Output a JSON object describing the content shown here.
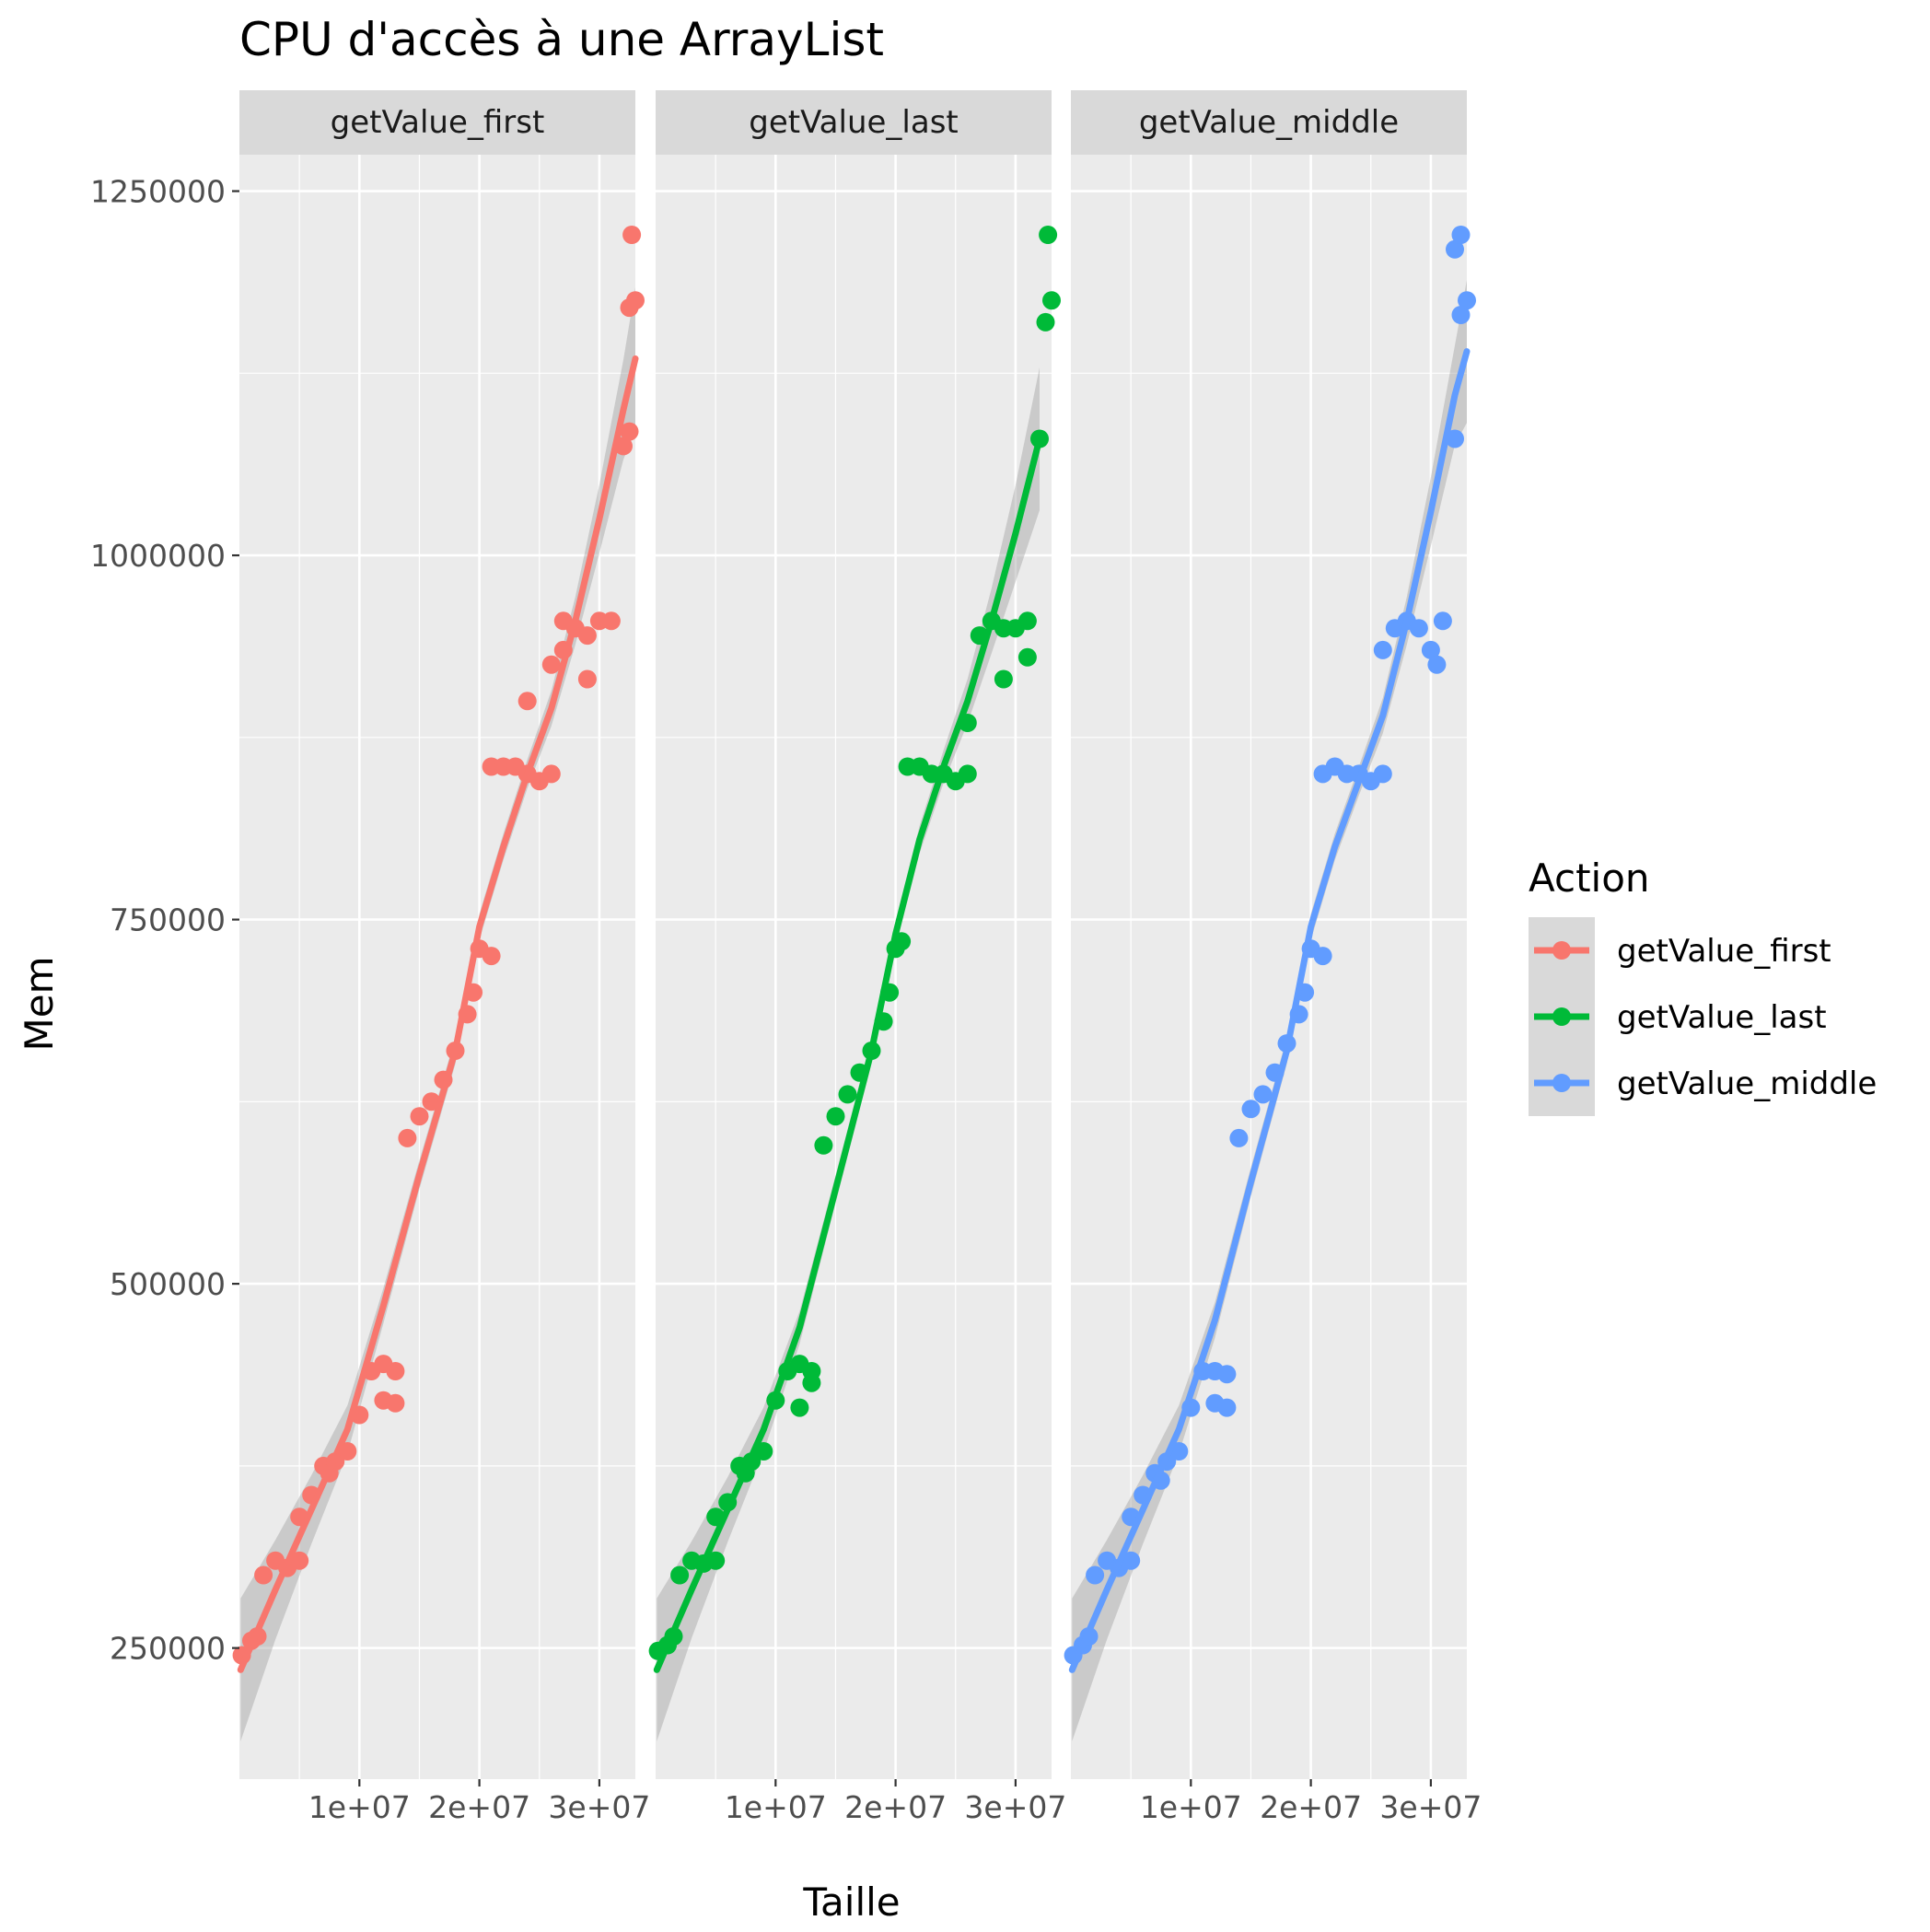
{
  "chart_data": {
    "type": "scatter",
    "title": "CPU d'accès à une ArrayList",
    "xlabel": "Taille",
    "ylabel": "Mem",
    "xlim": [
      0,
      33000000.0
    ],
    "ylim": [
      160000,
      1275000
    ],
    "x_ticks": [
      10000000,
      20000000,
      30000000
    ],
    "x_tick_labels": [
      "1e+07",
      "2e+07",
      "3e+07"
    ],
    "y_ticks": [
      250000,
      500000,
      750000,
      1000000,
      1250000
    ],
    "y_tick_labels": [
      "250000",
      "500000",
      "750000",
      "1000000",
      "1250000"
    ],
    "grid": true,
    "legend": {
      "title": "Action",
      "position": "right"
    },
    "facets": [
      "getValue_first",
      "getValue_last",
      "getValue_middle"
    ],
    "series": [
      {
        "name": "getValue_first",
        "color": "#F8766D",
        "smooth": [
          [
            100000,
            235000
          ],
          [
            3000000,
            290000
          ],
          [
            6000000,
            345000
          ],
          [
            9000000,
            400000
          ],
          [
            12000000,
            485000
          ],
          [
            15000000,
            575000
          ],
          [
            18000000,
            660000
          ],
          [
            20000000,
            745000
          ],
          [
            22000000,
            800000
          ],
          [
            24000000,
            850000
          ],
          [
            26000000,
            895000
          ],
          [
            28000000,
            955000
          ],
          [
            30000000,
            1025000
          ],
          [
            32000000,
            1100000
          ],
          [
            33000000,
            1135000
          ]
        ],
        "points": [
          [
            200000,
            245000
          ],
          [
            1000000,
            255000
          ],
          [
            1500000,
            258000
          ],
          [
            2000000,
            300000
          ],
          [
            3000000,
            310000
          ],
          [
            4000000,
            305000
          ],
          [
            5000000,
            310000
          ],
          [
            5000000,
            340000
          ],
          [
            6000000,
            355000
          ],
          [
            7000000,
            375000
          ],
          [
            7500000,
            370000
          ],
          [
            8000000,
            378000
          ],
          [
            9000000,
            385000
          ],
          [
            10000000,
            410000
          ],
          [
            11000000,
            440000
          ],
          [
            12000000,
            445000
          ],
          [
            12000000,
            420000
          ],
          [
            13000000,
            440000
          ],
          [
            13000000,
            418000
          ],
          [
            14000000,
            600000
          ],
          [
            15000000,
            615000
          ],
          [
            16000000,
            625000
          ],
          [
            17000000,
            640000
          ],
          [
            18000000,
            660000
          ],
          [
            19000000,
            685000
          ],
          [
            19500000,
            700000
          ],
          [
            20000000,
            730000
          ],
          [
            21000000,
            725000
          ],
          [
            21000000,
            855000
          ],
          [
            22000000,
            855000
          ],
          [
            23000000,
            855000
          ],
          [
            24000000,
            850000
          ],
          [
            25000000,
            845000
          ],
          [
            24000000,
            900000
          ],
          [
            26000000,
            850000
          ],
          [
            26000000,
            925000
          ],
          [
            27000000,
            935000
          ],
          [
            27000000,
            955000
          ],
          [
            28000000,
            950000
          ],
          [
            29000000,
            945000
          ],
          [
            29000000,
            915000
          ],
          [
            30000000,
            955000
          ],
          [
            31000000,
            955000
          ],
          [
            32000000,
            1075000
          ],
          [
            32500000,
            1085000
          ],
          [
            32500000,
            1170000
          ],
          [
            33000000,
            1175000
          ],
          [
            32700000,
            1220000
          ]
        ]
      },
      {
        "name": "getValue_last",
        "color": "#00BA38",
        "smooth": [
          [
            100000,
            235000
          ],
          [
            3000000,
            290000
          ],
          [
            6000000,
            345000
          ],
          [
            9000000,
            400000
          ],
          [
            12000000,
            470000
          ],
          [
            15000000,
            565000
          ],
          [
            18000000,
            660000
          ],
          [
            20000000,
            740000
          ],
          [
            22000000,
            805000
          ],
          [
            24000000,
            855000
          ],
          [
            26000000,
            900000
          ],
          [
            28000000,
            955000
          ],
          [
            30000000,
            1015000
          ],
          [
            32000000,
            1080000
          ]
        ],
        "points": [
          [
            200000,
            248000
          ],
          [
            1000000,
            252000
          ],
          [
            1500000,
            258000
          ],
          [
            2000000,
            300000
          ],
          [
            3000000,
            310000
          ],
          [
            4000000,
            308000
          ],
          [
            5000000,
            310000
          ],
          [
            5000000,
            340000
          ],
          [
            6000000,
            350000
          ],
          [
            7000000,
            375000
          ],
          [
            7500000,
            370000
          ],
          [
            8000000,
            378000
          ],
          [
            9000000,
            385000
          ],
          [
            10000000,
            420000
          ],
          [
            11000000,
            440000
          ],
          [
            12000000,
            445000
          ],
          [
            12000000,
            415000
          ],
          [
            13000000,
            440000
          ],
          [
            13000000,
            432000
          ],
          [
            14000000,
            595000
          ],
          [
            15000000,
            615000
          ],
          [
            16000000,
            630000
          ],
          [
            17000000,
            645000
          ],
          [
            18000000,
            660000
          ],
          [
            19000000,
            680000
          ],
          [
            19500000,
            700000
          ],
          [
            20000000,
            730000
          ],
          [
            20500000,
            735000
          ],
          [
            21000000,
            855000
          ],
          [
            22000000,
            855000
          ],
          [
            23000000,
            850000
          ],
          [
            24000000,
            850000
          ],
          [
            25000000,
            845000
          ],
          [
            26000000,
            850000
          ],
          [
            26000000,
            885000
          ],
          [
            27000000,
            945000
          ],
          [
            28000000,
            955000
          ],
          [
            29000000,
            950000
          ],
          [
            29000000,
            915000
          ],
          [
            30000000,
            950000
          ],
          [
            31000000,
            955000
          ],
          [
            31000000,
            930000
          ],
          [
            32000000,
            1080000
          ],
          [
            32500000,
            1160000
          ],
          [
            33000000,
            1175000
          ],
          [
            32700000,
            1220000
          ]
        ]
      },
      {
        "name": "getValue_middle",
        "color": "#619CFF",
        "smooth": [
          [
            100000,
            235000
          ],
          [
            3000000,
            290000
          ],
          [
            6000000,
            345000
          ],
          [
            9000000,
            400000
          ],
          [
            12000000,
            475000
          ],
          [
            15000000,
            570000
          ],
          [
            18000000,
            660000
          ],
          [
            20000000,
            745000
          ],
          [
            22000000,
            800000
          ],
          [
            24000000,
            845000
          ],
          [
            26000000,
            890000
          ],
          [
            28000000,
            955000
          ],
          [
            30000000,
            1030000
          ],
          [
            32000000,
            1110000
          ],
          [
            33000000,
            1140000
          ]
        ],
        "points": [
          [
            200000,
            245000
          ],
          [
            1000000,
            252000
          ],
          [
            1500000,
            258000
          ],
          [
            2000000,
            300000
          ],
          [
            3000000,
            310000
          ],
          [
            4000000,
            305000
          ],
          [
            5000000,
            310000
          ],
          [
            5000000,
            340000
          ],
          [
            6000000,
            355000
          ],
          [
            7000000,
            370000
          ],
          [
            7500000,
            365000
          ],
          [
            8000000,
            378000
          ],
          [
            9000000,
            385000
          ],
          [
            10000000,
            415000
          ],
          [
            11000000,
            440000
          ],
          [
            12000000,
            440000
          ],
          [
            12000000,
            418000
          ],
          [
            13000000,
            438000
          ],
          [
            13000000,
            415000
          ],
          [
            14000000,
            600000
          ],
          [
            15000000,
            620000
          ],
          [
            16000000,
            630000
          ],
          [
            17000000,
            645000
          ],
          [
            18000000,
            665000
          ],
          [
            19000000,
            685000
          ],
          [
            19500000,
            700000
          ],
          [
            20000000,
            730000
          ],
          [
            21000000,
            725000
          ],
          [
            21000000,
            850000
          ],
          [
            22000000,
            855000
          ],
          [
            23000000,
            850000
          ],
          [
            24000000,
            850000
          ],
          [
            25000000,
            845000
          ],
          [
            26000000,
            850000
          ],
          [
            26000000,
            935000
          ],
          [
            27000000,
            950000
          ],
          [
            28000000,
            955000
          ],
          [
            29000000,
            950000
          ],
          [
            30000000,
            935000
          ],
          [
            30500000,
            925000
          ],
          [
            31000000,
            955000
          ],
          [
            32000000,
            1080000
          ],
          [
            32500000,
            1165000
          ],
          [
            33000000,
            1175000
          ],
          [
            32000000,
            1210000
          ],
          [
            32500000,
            1220000
          ]
        ]
      }
    ]
  }
}
